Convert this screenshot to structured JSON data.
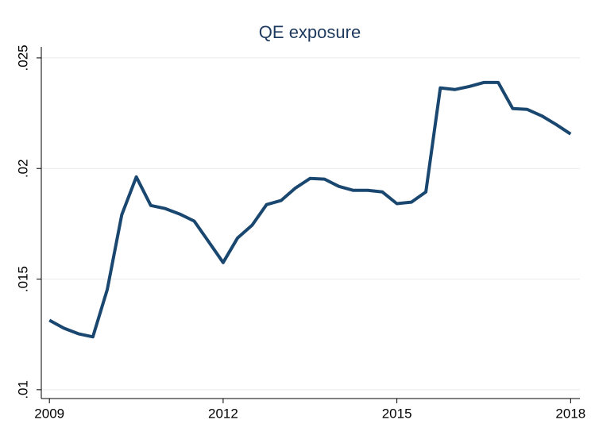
{
  "chart_data": {
    "type": "line",
    "title": "QE exposure",
    "x": [
      2009,
      2009.25,
      2009.5,
      2009.75,
      2010,
      2010.25,
      2010.5,
      2010.75,
      2011,
      2011.25,
      2011.5,
      2011.75,
      2012,
      2012.25,
      2012.5,
      2012.75,
      2013,
      2013.25,
      2013.5,
      2013.75,
      2014,
      2014.25,
      2014.5,
      2014.75,
      2015,
      2015.25,
      2015.5,
      2015.75,
      2016,
      2016.25,
      2016.5,
      2016.75,
      2017,
      2017.25,
      2017.5,
      2017.75,
      2018
    ],
    "series": [
      {
        "name": "QE exposure",
        "color": "#1a476f",
        "values": [
          0.01314,
          0.01278,
          0.01253,
          0.01239,
          0.01454,
          0.01791,
          0.01962,
          0.01833,
          0.01819,
          0.01794,
          0.01762,
          0.01669,
          0.01575,
          0.01686,
          0.01744,
          0.01837,
          0.01855,
          0.01912,
          0.01955,
          0.01952,
          0.01919,
          0.01901,
          0.01901,
          0.01894,
          0.01841,
          0.01848,
          0.01894,
          0.02364,
          0.02357,
          0.02371,
          0.02389,
          0.02389,
          0.02271,
          0.02267,
          0.02238,
          0.02199,
          0.02156
        ]
      }
    ],
    "xlim": [
      2008.86,
      2018.16
    ],
    "xticks": [
      2009,
      2012,
      2015,
      2018
    ],
    "ylim": [
      0.0096,
      0.0255
    ],
    "yticks": [
      {
        "value": 0.01,
        "label": ".01"
      },
      {
        "value": 0.015,
        "label": ".015"
      },
      {
        "value": 0.02,
        "label": ".02"
      },
      {
        "value": 0.025,
        "label": ".025"
      }
    ],
    "grid": true
  }
}
